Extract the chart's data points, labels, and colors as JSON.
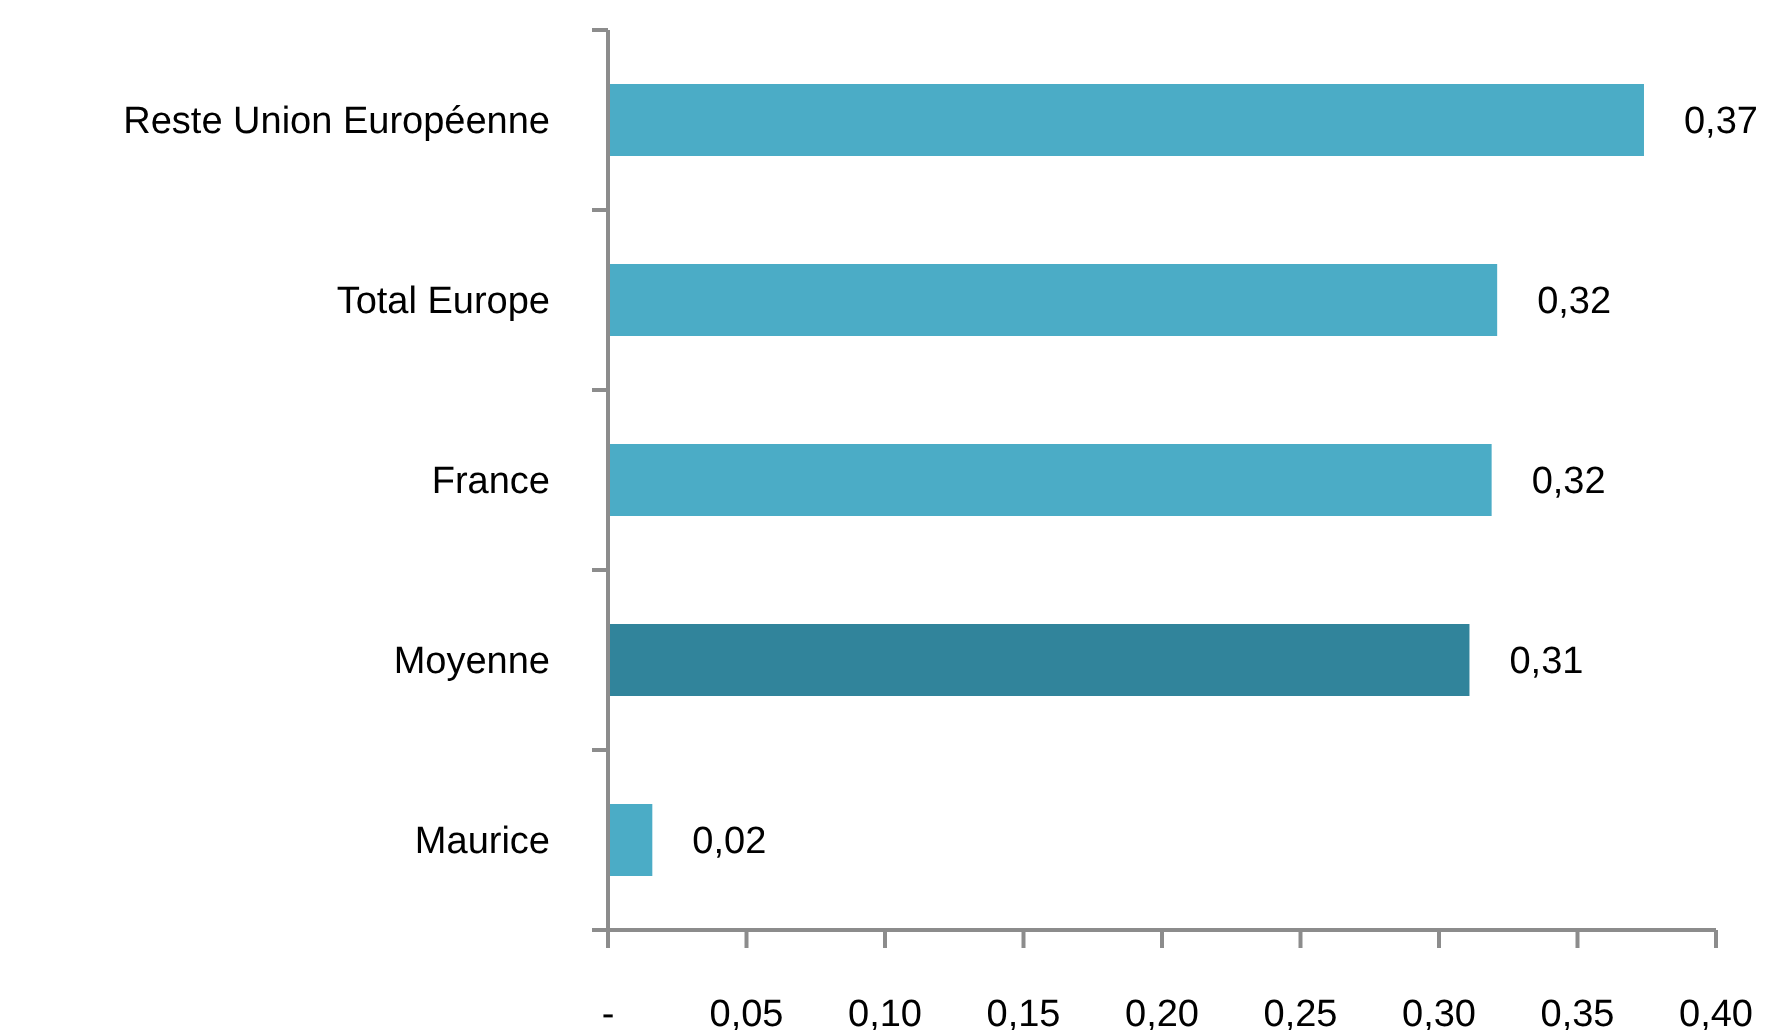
{
  "chart_data": {
    "type": "bar",
    "orientation": "horizontal",
    "categories": [
      "Reste Union Européenne",
      "Total Europe",
      "France",
      "Moyenne",
      "Maurice"
    ],
    "values": [
      0.374,
      0.321,
      0.319,
      0.311,
      0.016
    ],
    "colors": [
      "#4bacc6",
      "#4bacc6",
      "#4bacc6",
      "#31849b",
      "#4bacc6"
    ],
    "value_labels": [
      "0,37",
      "0,32",
      "0,32",
      "0,31",
      "0,02"
    ],
    "xlim": [
      0,
      0.4
    ],
    "xticks": [
      {
        "value": 0,
        "label": "-"
      },
      {
        "value": 0.05,
        "label": "0,05"
      },
      {
        "value": 0.1,
        "label": "0,10"
      },
      {
        "value": 0.15,
        "label": "0,15"
      },
      {
        "value": 0.2,
        "label": "0,20"
      },
      {
        "value": 0.25,
        "label": "0,25"
      },
      {
        "value": 0.3,
        "label": "0,30"
      },
      {
        "value": 0.35,
        "label": "0,35"
      },
      {
        "value": 0.4,
        "label": "0,40"
      }
    ]
  }
}
